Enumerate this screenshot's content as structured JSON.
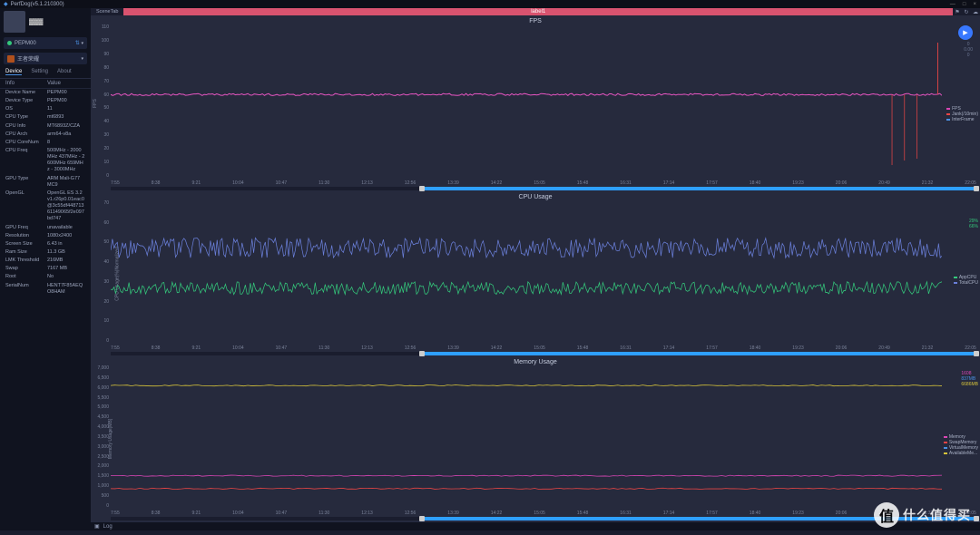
{
  "window": {
    "title": "PerfDog(v5.1.210300)",
    "min": "—",
    "max": "□",
    "close": "×"
  },
  "profile": {
    "name": "▓▓▓"
  },
  "deviceDropdown": {
    "label": "PEPM00",
    "wifi": "⇅"
  },
  "gameDropdown": {
    "label": "王者荣耀"
  },
  "tabs": {
    "device": "Device",
    "setting": "Setting",
    "about": "About"
  },
  "infoHeader": {
    "k": "Info",
    "v": "Value"
  },
  "info": [
    {
      "k": "Device Name",
      "v": "PEPM00"
    },
    {
      "k": "Device Type",
      "v": "PEPM00"
    },
    {
      "k": "OS",
      "v": "11"
    },
    {
      "k": "CPU Type",
      "v": "mt6893"
    },
    {
      "k": "CPU Info",
      "v": "MT6893Z/CZA"
    },
    {
      "k": "CPU Arch",
      "v": "arm64-v8a"
    },
    {
      "k": "CPU CoreNum",
      "v": "8"
    },
    {
      "k": "CPU Freq",
      "v": "500MHz - 2000MHz 437MHz - 2600MHz 659MHz - 3000MHz"
    },
    {
      "k": "GPU Type",
      "v": "ARM Mali-G77 MC9"
    },
    {
      "k": "OpenGL",
      "v": "OpenGL ES 3.2 v1.r26p0.01eac0@3c55df44871361149065f2e097bd747"
    },
    {
      "k": "GPU Freq",
      "v": "unavailable"
    },
    {
      "k": "Resolution",
      "v": "1080x2400"
    },
    {
      "k": "Screen Size",
      "v": "6.43 in"
    },
    {
      "k": "Ram Size",
      "v": "11.3 GB"
    },
    {
      "k": "LMK Threshold",
      "v": "216MB"
    },
    {
      "k": "Swap",
      "v": "7167 MB"
    },
    {
      "k": "Root",
      "v": "No"
    },
    {
      "k": "SerialNum",
      "v": "HENT7F85AEQO8HAM"
    }
  ],
  "scene": {
    "tab": "SceneTab",
    "label": "label1"
  },
  "play": {
    "t": "0",
    "f": "0.00",
    "n": "0"
  },
  "timeline": [
    "7:55",
    "8:38",
    "9:21",
    "10:04",
    "10:47",
    "11:30",
    "12:13",
    "12:56",
    "13:39",
    "14:22",
    "15:05",
    "15:48",
    "16:31",
    "17:14",
    "17:57",
    "18:40",
    "19:23",
    "20:06",
    "20:49",
    "21:32",
    "22:05"
  ],
  "fps": {
    "title": "FPS",
    "yticks": [
      "110",
      "100",
      "90",
      "80",
      "70",
      "60",
      "50",
      "40",
      "30",
      "20",
      "10",
      "0"
    ],
    "axisLabel": "FPS",
    "legend": [
      {
        "label": "FPS",
        "color": "#d946b5"
      },
      {
        "label": "Jank(/10min)",
        "color": "#e84545"
      },
      {
        "label": "InterFrame",
        "color": "#4a90e2"
      }
    ],
    "line60_color": "#e855c2",
    "accent_end": "#e84545",
    "slider": {
      "start": 0.36,
      "end": 1.0
    }
  },
  "cpu": {
    "title": "CPU Usage",
    "yticks": [
      "70",
      "60",
      "50",
      "40",
      "30",
      "20",
      "10",
      "0"
    ],
    "axisLabel": "CPU Usage(%)Normalized",
    "rightVals": [
      "29%",
      "66%"
    ],
    "legend": [
      {
        "label": "AppCPU",
        "color": "#34c77b"
      },
      {
        "label": "TotalCPU",
        "color": "#6a7fd9"
      }
    ],
    "app_color": "#34c77b",
    "total_color": "#6a7fd9",
    "slider": {
      "start": 0.36,
      "end": 1.0
    }
  },
  "mem": {
    "title": "Memory Usage",
    "yticks": [
      "7,000",
      "6,500",
      "6,000",
      "5,500",
      "5,000",
      "4,500",
      "4,000",
      "3,500",
      "3,000",
      "2,500",
      "2,000",
      "1,500",
      "1,000",
      "500",
      "0"
    ],
    "axisLabel": "Memory Usage[MB]",
    "rightVals": [
      "1608",
      "837MB",
      "6686MB"
    ],
    "legend": [
      {
        "label": "Memory",
        "color": "#d946b5"
      },
      {
        "label": "SwapMemory",
        "color": "#e84545"
      },
      {
        "label": "VirtualMemory",
        "color": "#4a90e2"
      },
      {
        "label": "AvailableMe...",
        "color": "#d6c33a"
      }
    ],
    "lines": {
      "available": {
        "y": 0.14,
        "color": "#d6c33a"
      },
      "mem": {
        "y": 0.77,
        "color": "#d946b5"
      },
      "swap": {
        "y": 0.86,
        "color": "#e84545"
      }
    },
    "slider": {
      "start": 0.36,
      "end": 1.0
    }
  },
  "log": {
    "label": "Log",
    "icon": "▣"
  },
  "watermark": {
    "char": "值",
    "text": "什么值得买"
  },
  "colors": {
    "bg": "#262a3d",
    "grid": "#2f3449"
  }
}
